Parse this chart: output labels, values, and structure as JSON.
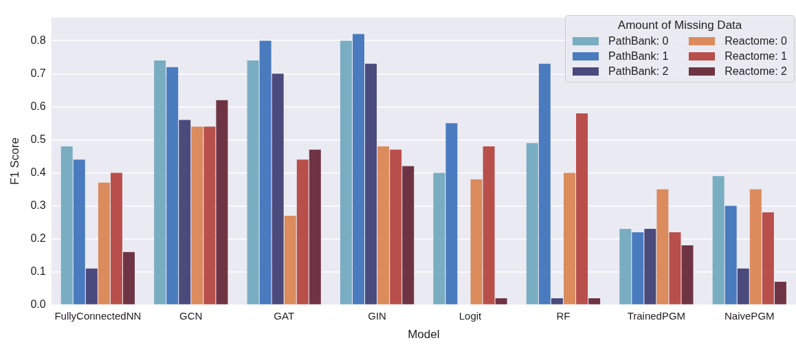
{
  "chart_data": {
    "type": "bar",
    "xlabel": "Model",
    "ylabel": "F1 Score",
    "legend_title": "Amount of Missing Data",
    "categories": [
      "FullyConnectedNN",
      "GCN",
      "GAT",
      "GIN",
      "Logit",
      "RF",
      "TrainedPGM",
      "NaivePGM"
    ],
    "series": [
      {
        "name": "PathBank: 0",
        "color": "#79adc2",
        "values": [
          0.48,
          0.74,
          0.74,
          0.8,
          0.4,
          0.49,
          0.23,
          0.39
        ]
      },
      {
        "name": "PathBank: 1",
        "color": "#4a7bbf",
        "values": [
          0.44,
          0.72,
          0.8,
          0.82,
          0.55,
          0.73,
          0.22,
          0.3
        ]
      },
      {
        "name": "PathBank: 2",
        "color": "#4b4a7c",
        "values": [
          0.11,
          0.56,
          0.7,
          0.73,
          null,
          0.02,
          0.23,
          0.11
        ]
      },
      {
        "name": "Reactome: 0",
        "color": "#db8b5c",
        "values": [
          0.37,
          0.54,
          0.27,
          0.48,
          0.38,
          0.4,
          0.35,
          0.35
        ]
      },
      {
        "name": "Reactome: 1",
        "color": "#b94f4b",
        "values": [
          0.4,
          0.54,
          0.44,
          0.47,
          0.48,
          0.58,
          0.22,
          0.28
        ]
      },
      {
        "name": "Reactome: 2",
        "color": "#6f3443",
        "values": [
          0.16,
          0.62,
          0.47,
          0.42,
          0.02,
          0.02,
          0.18,
          0.07
        ]
      }
    ],
    "ylim": [
      0,
      0.87
    ],
    "yticks": [
      {
        "value": 0,
        "label": "0.0"
      },
      0.1,
      0.2,
      0.3,
      0.4,
      0.5,
      0.6,
      0.7,
      0.8
    ],
    "grid": "y",
    "legend": "top right"
  }
}
